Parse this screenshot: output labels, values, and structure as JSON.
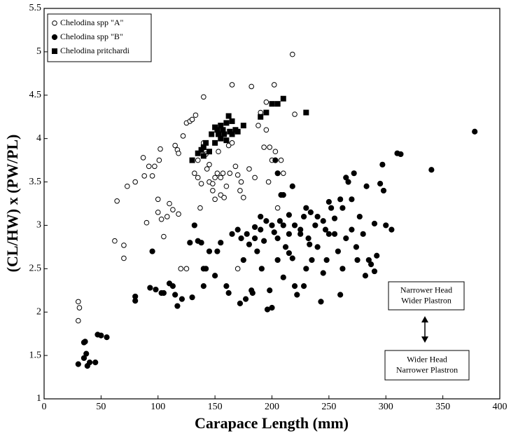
{
  "chart_data": {
    "type": "scatter",
    "x_label": "Carapace Length (mm)",
    "y_label": "(CL/HW) x (PW/PL)",
    "xlim": [
      0,
      400
    ],
    "xticks": [
      0,
      50,
      100,
      150,
      200,
      250,
      300,
      350,
      400
    ],
    "ylim": [
      1,
      5.5
    ],
    "yticks": [
      1,
      1.5,
      2,
      2.5,
      3,
      3.5,
      4,
      4.5,
      5,
      5.5
    ],
    "legend": "upper left",
    "annotations": [
      [
        "Narrower Head",
        "Wider Plastron"
      ],
      [
        "Wider Head",
        "Narrower Plastron"
      ]
    ],
    "series": [
      {
        "name": "Chelodina spp  \"A\"",
        "marker": "open circle",
        "color": "#000",
        "x": [
          30,
          31,
          30,
          62,
          64,
          70,
          70,
          73,
          80,
          87,
          88,
          90,
          92,
          95,
          97,
          100,
          100,
          101,
          102,
          103,
          105,
          108,
          110,
          113,
          115,
          117,
          118,
          120,
          118,
          122,
          125,
          128,
          130,
          133,
          130,
          132,
          135,
          135,
          137,
          138,
          140,
          140,
          142,
          143,
          145,
          145,
          148,
          148,
          150,
          150,
          152,
          153,
          155,
          155,
          157,
          158,
          160,
          162,
          163,
          165,
          165,
          168,
          170,
          172,
          173,
          175,
          170,
          180,
          182,
          185,
          188,
          190,
          193,
          195,
          195,
          197,
          198,
          200,
          202,
          203,
          205,
          208,
          210,
          218,
          220,
          175,
          125
        ],
        "y": [
          2.12,
          2.05,
          1.9,
          2.82,
          3.28,
          2.77,
          2.62,
          3.45,
          3.5,
          3.78,
          3.57,
          3.03,
          3.68,
          3.57,
          3.68,
          3.3,
          3.15,
          3.75,
          3.88,
          3.07,
          2.87,
          3.1,
          3.25,
          3.18,
          3.92,
          3.87,
          3.13,
          2.5,
          3.83,
          4.03,
          4.18,
          4.2,
          4.22,
          4.27,
          3.75,
          3.6,
          3.55,
          3.75,
          3.2,
          3.48,
          4.48,
          3.95,
          3.82,
          3.65,
          3.5,
          3.7,
          3.48,
          3.4,
          3.55,
          3.3,
          3.6,
          3.85,
          3.55,
          3.35,
          3.6,
          3.32,
          3.45,
          3.92,
          3.6,
          4.62,
          3.95,
          3.68,
          3.58,
          3.4,
          3.5,
          3.32,
          2.5,
          3.65,
          4.6,
          3.55,
          4.15,
          4.3,
          3.9,
          4.1,
          4.42,
          3.5,
          3.9,
          3.75,
          4.62,
          3.85,
          3.2,
          3.75,
          3.6,
          4.97,
          4.28,
          2.6,
          2.5
        ]
      },
      {
        "name": "Chelodina spp  \"B\"",
        "marker": "filled circle",
        "color": "#000",
        "x": [
          30,
          35,
          35,
          37,
          38,
          40,
          45,
          47,
          50,
          55,
          36,
          80,
          80,
          93,
          95,
          98,
          103,
          105,
          110,
          113,
          115,
          117,
          121,
          128,
          130,
          132,
          135,
          138,
          140,
          140,
          142,
          145,
          150,
          152,
          155,
          160,
          162,
          165,
          170,
          172,
          173,
          175,
          177,
          180,
          182,
          183,
          185,
          187,
          190,
          191,
          193,
          195,
          196,
          198,
          200,
          200,
          202,
          205,
          205,
          207,
          208,
          210,
          212,
          215,
          218,
          220,
          222,
          225,
          228,
          230,
          232,
          234,
          235,
          238,
          240,
          243,
          245,
          248,
          250,
          252,
          255,
          258,
          260,
          262,
          265,
          267,
          270,
          272,
          275,
          277,
          280,
          283,
          285,
          287,
          290,
          292,
          295,
          297,
          300,
          305,
          310,
          313,
          340,
          378,
          290,
          298,
          265,
          250,
          240,
          230,
          225,
          215,
          210,
          203,
          205,
          218,
          228,
          260,
          274,
          282,
          245,
          210,
          215,
          220,
          233,
          247,
          255,
          262,
          270,
          185,
          178,
          190
        ],
        "y": [
          1.4,
          1.65,
          1.47,
          1.52,
          1.38,
          1.42,
          1.42,
          1.74,
          1.73,
          1.71,
          1.66,
          2.18,
          2.13,
          2.28,
          2.7,
          2.26,
          2.22,
          2.22,
          2.33,
          2.3,
          2.2,
          2.07,
          2.15,
          2.8,
          2.17,
          3.0,
          2.82,
          2.8,
          2.5,
          2.3,
          2.5,
          2.7,
          2.42,
          2.7,
          2.8,
          2.3,
          2.22,
          2.9,
          2.95,
          2.1,
          2.85,
          2.6,
          2.15,
          2.78,
          2.25,
          2.22,
          2.98,
          2.7,
          2.95,
          2.5,
          2.82,
          3.05,
          2.03,
          2.25,
          2.05,
          3.0,
          2.92,
          2.6,
          2.85,
          3.05,
          3.35,
          3.0,
          2.75,
          3.12,
          2.62,
          2.3,
          2.2,
          2.95,
          3.1,
          2.5,
          2.85,
          3.15,
          2.6,
          3.0,
          2.75,
          2.12,
          3.05,
          2.6,
          2.9,
          3.2,
          2.9,
          2.7,
          3.3,
          3.2,
          2.85,
          3.5,
          2.95,
          3.6,
          2.6,
          3.1,
          2.9,
          3.45,
          2.6,
          2.55,
          2.47,
          2.65,
          3.48,
          3.7,
          3.0,
          2.95,
          3.83,
          3.82,
          3.64,
          4.08,
          3.02,
          3.4,
          3.55,
          3.27,
          3.1,
          3.2,
          2.9,
          2.68,
          2.4,
          3.75,
          3.6,
          3.45,
          2.3,
          2.2,
          2.75,
          2.42,
          2.45,
          3.35,
          2.9,
          3.0,
          2.78,
          2.95,
          3.08,
          2.5,
          3.3,
          2.85,
          2.9,
          3.1
        ]
      },
      {
        "name": "Chelodina pritchardi",
        "marker": "square",
        "color": "#000",
        "x": [
          130,
          135,
          138,
          140,
          140,
          142,
          145,
          147,
          150,
          150,
          152,
          153,
          155,
          155,
          157,
          158,
          160,
          160,
          162,
          163,
          165,
          165,
          168,
          170,
          175,
          190,
          195,
          200,
          205,
          210,
          230
        ],
        "y": [
          3.75,
          3.83,
          3.87,
          3.9,
          3.8,
          3.95,
          3.85,
          4.05,
          4.13,
          3.95,
          4.1,
          4.05,
          4.15,
          4.0,
          4.1,
          4.05,
          4.18,
          3.98,
          4.26,
          4.08,
          4.2,
          4.05,
          4.1,
          4.08,
          4.15,
          4.25,
          4.3,
          4.4,
          4.4,
          4.46,
          4.3
        ]
      }
    ]
  }
}
